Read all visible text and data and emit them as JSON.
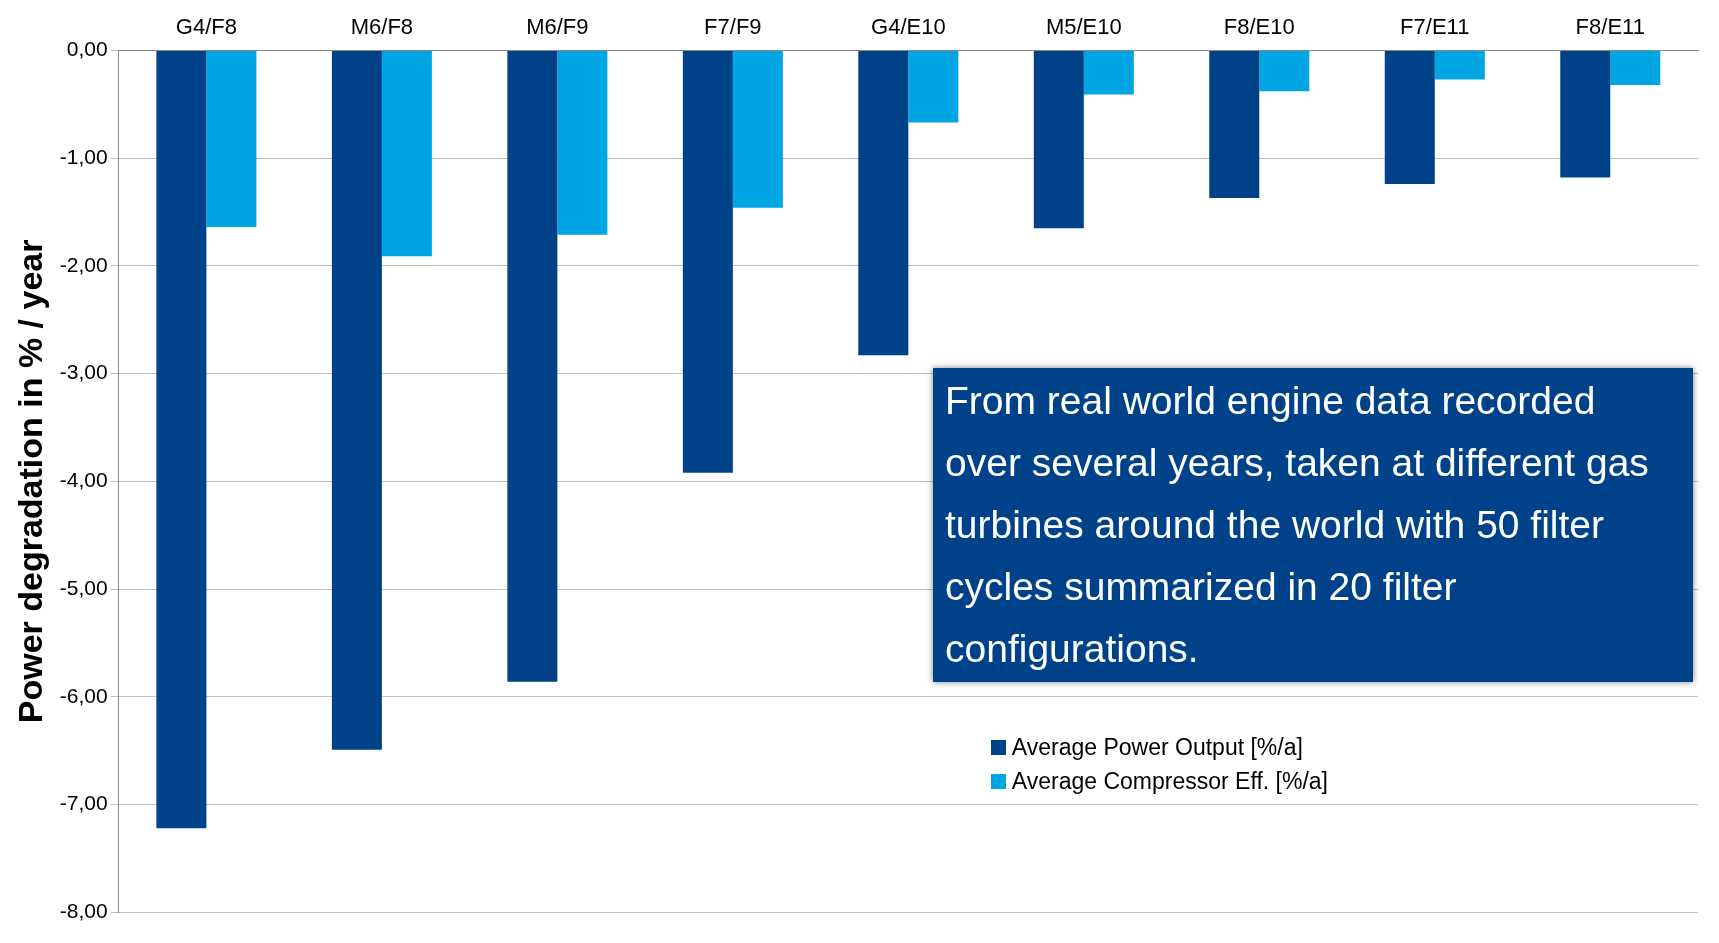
{
  "chart_data": {
    "type": "bar",
    "ylabel": "Power degradation in % / year",
    "categories": [
      "G4/F8",
      "M6/F8",
      "M6/F9",
      "F7/F9",
      "G4/E10",
      "M5/E10",
      "F8/E10",
      "F7/E11",
      "F8/E11"
    ],
    "series": [
      {
        "name": "Average Power Output [%/a]",
        "color": "#00428a",
        "values": [
          -7.22,
          -6.49,
          -5.86,
          -3.92,
          -2.83,
          -1.65,
          -1.37,
          -1.24,
          -1.18
        ]
      },
      {
        "name": "Average Compressor Eff. [%/a]",
        "color": "#00a5e3",
        "values": [
          -1.64,
          -1.91,
          -1.71,
          -1.46,
          -0.67,
          -0.41,
          -0.38,
          -0.27,
          -0.32
        ]
      }
    ],
    "ylim": [
      -8,
      0
    ],
    "yticks": [
      {
        "value": 0,
        "label": "0,00"
      },
      {
        "value": -1,
        "label": "-1,00"
      },
      {
        "value": -2,
        "label": "-2,00"
      },
      {
        "value": -3,
        "label": "-3,00"
      },
      {
        "value": -4,
        "label": "-4,00"
      },
      {
        "value": -5,
        "label": "-5,00"
      },
      {
        "value": -6,
        "label": "-6,00"
      },
      {
        "value": -7,
        "label": "-7,00"
      },
      {
        "value": -8,
        "label": "-8,00"
      }
    ],
    "grid": "y",
    "legend": "bottom right",
    "annotations": [
      "From real world engine data recorded over several years, taken at different gas turbines around the world with 50 filter cycles summarized in 20 filter configurations."
    ]
  }
}
